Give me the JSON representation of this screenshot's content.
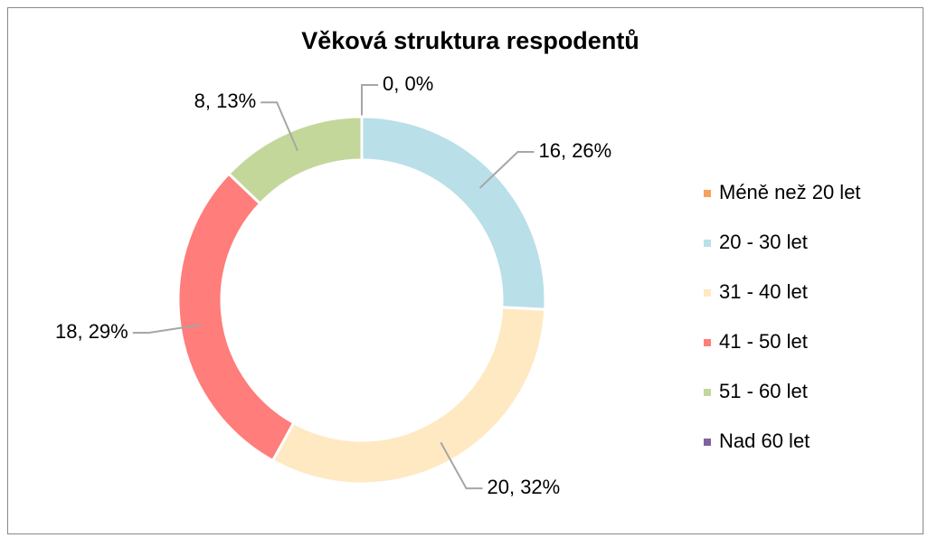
{
  "chart_data": {
    "type": "donut",
    "title": "Věková struktura respodentů",
    "categories": [
      "Méně než 20 let",
      "20 - 30 let",
      "31 - 40 let",
      "41 - 50 let",
      "51 - 60 let",
      "Nad 60 let"
    ],
    "values": [
      0,
      16,
      20,
      18,
      8,
      0
    ],
    "value_labels": [
      "0, 0%",
      "16, 26%",
      "20, 32%",
      "18, 29%",
      "8, 13%",
      null
    ],
    "colors": [
      "#f5a25d",
      "#b9dfe9",
      "#ffe9c2",
      "#ff7d7a",
      "#c4d79b",
      "#7f62a0"
    ],
    "legend": "right"
  }
}
